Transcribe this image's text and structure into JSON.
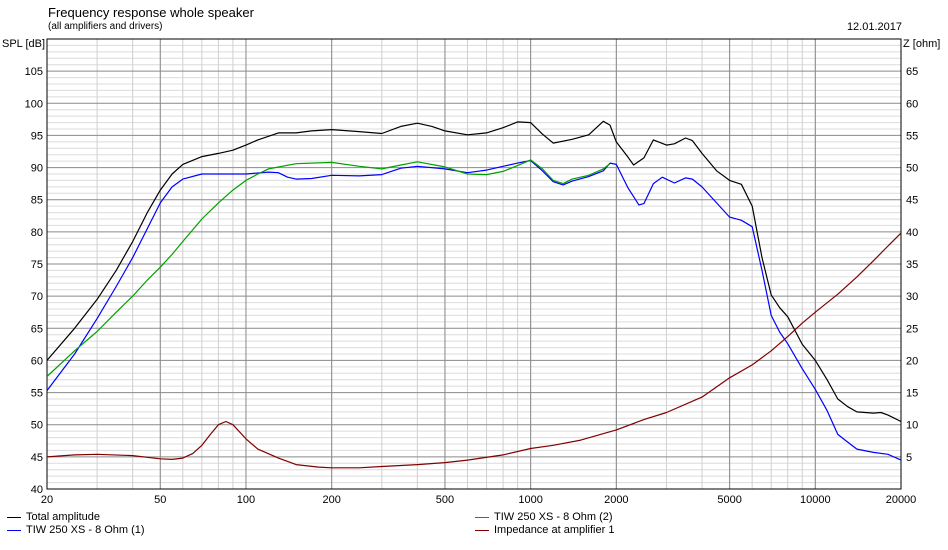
{
  "header": {
    "title": "Frequency response whole speaker",
    "subtitle": "(all amplifiers and drivers)",
    "date": "12.01.2017"
  },
  "chart_data": {
    "type": "line",
    "xscale": "log",
    "xlim": [
      20,
      20000
    ],
    "ylim": [
      40,
      110
    ],
    "y2lim": [
      0,
      70
    ],
    "ylabel": "SPL [dB]",
    "y2label": "Z [ohm]",
    "grid": true,
    "legend": "bottom",
    "x_ticks": [
      {
        "v": 20,
        "l": "20"
      },
      {
        "v": 50,
        "l": "50"
      },
      {
        "v": 100,
        "l": "100"
      },
      {
        "v": 200,
        "l": "200"
      },
      {
        "v": 500,
        "l": "500"
      },
      {
        "v": 1000,
        "l": "1000"
      },
      {
        "v": 2000,
        "l": "2000"
      },
      {
        "v": 5000,
        "l": "5000"
      },
      {
        "v": 10000,
        "l": "10000"
      },
      {
        "v": 20000,
        "l": "20000"
      }
    ],
    "y_ticks": [
      "40",
      "45",
      "50",
      "55",
      "60",
      "65",
      "70",
      "75",
      "80",
      "85",
      "90",
      "95",
      "100",
      "105"
    ],
    "y2_ticks": [
      "5",
      "10",
      "15",
      "20",
      "25",
      "30",
      "35",
      "40",
      "45",
      "50",
      "55",
      "60",
      "65"
    ],
    "series": [
      {
        "name": "Total amplitude",
        "color": "#000000",
        "axis": "left",
        "points": [
          [
            20,
            60
          ],
          [
            25,
            65
          ],
          [
            30,
            69.5
          ],
          [
            35,
            74
          ],
          [
            40,
            78.5
          ],
          [
            45,
            83
          ],
          [
            50,
            86.5
          ],
          [
            55,
            89
          ],
          [
            60,
            90.5
          ],
          [
            70,
            91.7
          ],
          [
            80,
            92.2
          ],
          [
            90,
            92.7
          ],
          [
            100,
            93.5
          ],
          [
            110,
            94.3
          ],
          [
            130,
            95.4
          ],
          [
            150,
            95.4
          ],
          [
            170,
            95.7
          ],
          [
            200,
            95.9
          ],
          [
            250,
            95.6
          ],
          [
            300,
            95.3
          ],
          [
            350,
            96.4
          ],
          [
            400,
            96.9
          ],
          [
            450,
            96.4
          ],
          [
            500,
            95.7
          ],
          [
            600,
            95.1
          ],
          [
            700,
            95.4
          ],
          [
            800,
            96.2
          ],
          [
            900,
            97.1
          ],
          [
            1000,
            97
          ],
          [
            1100,
            95.2
          ],
          [
            1200,
            93.8
          ],
          [
            1400,
            94.4
          ],
          [
            1600,
            95.1
          ],
          [
            1800,
            97.2
          ],
          [
            1900,
            96.6
          ],
          [
            2000,
            94
          ],
          [
            2200,
            91.6
          ],
          [
            2300,
            90.4
          ],
          [
            2500,
            91.5
          ],
          [
            2700,
            94.3
          ],
          [
            3000,
            93.5
          ],
          [
            3200,
            93.7
          ],
          [
            3500,
            94.6
          ],
          [
            3700,
            94.2
          ],
          [
            4000,
            92.2
          ],
          [
            4500,
            89.5
          ],
          [
            5000,
            88
          ],
          [
            5500,
            87.4
          ],
          [
            6000,
            84
          ],
          [
            6500,
            76
          ],
          [
            7000,
            70.2
          ],
          [
            7500,
            68.2
          ],
          [
            8000,
            66.8
          ],
          [
            9000,
            62.5
          ],
          [
            10000,
            60
          ],
          [
            11000,
            57
          ],
          [
            12000,
            54
          ],
          [
            13000,
            52.8
          ],
          [
            14000,
            52
          ],
          [
            16000,
            51.8
          ],
          [
            17000,
            51.9
          ],
          [
            18000,
            51.5
          ],
          [
            20000,
            50.5
          ]
        ]
      },
      {
        "name": "TIW 250 XS - 8 Ohm (1)",
        "color": "#0000ff",
        "axis": "left",
        "points": [
          [
            20,
            55.3
          ],
          [
            25,
            61
          ],
          [
            30,
            66.5
          ],
          [
            35,
            71.5
          ],
          [
            40,
            76
          ],
          [
            45,
            80.5
          ],
          [
            50,
            84.5
          ],
          [
            55,
            87
          ],
          [
            60,
            88.2
          ],
          [
            70,
            89
          ],
          [
            80,
            89
          ],
          [
            100,
            89
          ],
          [
            120,
            89.3
          ],
          [
            130,
            89.2
          ],
          [
            140,
            88.5
          ],
          [
            150,
            88.2
          ],
          [
            170,
            88.3
          ],
          [
            200,
            88.8
          ],
          [
            250,
            88.7
          ],
          [
            300,
            88.9
          ],
          [
            350,
            89.9
          ],
          [
            400,
            90.2
          ],
          [
            500,
            89.8
          ],
          [
            600,
            89.2
          ],
          [
            700,
            89.6
          ],
          [
            800,
            90.2
          ],
          [
            900,
            90.7
          ],
          [
            1000,
            91.1
          ],
          [
            1100,
            89.5
          ],
          [
            1200,
            87.8
          ],
          [
            1300,
            87.3
          ],
          [
            1400,
            87.9
          ],
          [
            1600,
            88.6
          ],
          [
            1800,
            89.5
          ],
          [
            1900,
            90.7
          ],
          [
            2000,
            90.5
          ],
          [
            2200,
            86.8
          ],
          [
            2400,
            84.2
          ],
          [
            2500,
            84.4
          ],
          [
            2700,
            87.5
          ],
          [
            2900,
            88.5
          ],
          [
            3200,
            87.6
          ],
          [
            3500,
            88.4
          ],
          [
            3700,
            88.2
          ],
          [
            4000,
            87
          ],
          [
            4500,
            84.5
          ],
          [
            5000,
            82.3
          ],
          [
            5500,
            81.8
          ],
          [
            6000,
            80.8
          ],
          [
            6500,
            74
          ],
          [
            7000,
            67
          ],
          [
            7500,
            64.4
          ],
          [
            8000,
            62.6
          ],
          [
            9000,
            58.7
          ],
          [
            10000,
            55.5
          ],
          [
            11000,
            52.2
          ],
          [
            12000,
            48.5
          ],
          [
            13000,
            47.3
          ],
          [
            14000,
            46.2
          ],
          [
            16000,
            45.7
          ],
          [
            18000,
            45.4
          ],
          [
            20000,
            44.5
          ]
        ]
      },
      {
        "name": "TIW 250 XS - 8 Ohm (2)",
        "color": "#00a000",
        "axis": "left",
        "points": [
          [
            20,
            57.5
          ],
          [
            25,
            61.5
          ],
          [
            30,
            64.5
          ],
          [
            35,
            67.5
          ],
          [
            40,
            70
          ],
          [
            45,
            72.5
          ],
          [
            50,
            74.5
          ],
          [
            55,
            76.5
          ],
          [
            60,
            78.5
          ],
          [
            70,
            82
          ],
          [
            80,
            84.5
          ],
          [
            90,
            86.5
          ],
          [
            100,
            88
          ],
          [
            110,
            89
          ],
          [
            120,
            89.8
          ],
          [
            150,
            90.6
          ],
          [
            200,
            90.8
          ],
          [
            250,
            90.2
          ],
          [
            300,
            89.8
          ],
          [
            350,
            90.4
          ],
          [
            400,
            90.9
          ],
          [
            500,
            90.1
          ],
          [
            600,
            89
          ],
          [
            700,
            88.9
          ],
          [
            800,
            89.4
          ],
          [
            900,
            90.3
          ],
          [
            1000,
            91.2
          ],
          [
            1100,
            89.8
          ],
          [
            1200,
            88
          ],
          [
            1300,
            87.5
          ],
          [
            1400,
            88.2
          ],
          [
            1600,
            88.8
          ],
          [
            1800,
            89.8
          ],
          [
            1900,
            90.6
          ]
        ]
      },
      {
        "name": "Impedance at amplifier 1",
        "color": "#800000",
        "axis": "right",
        "points": [
          [
            20,
            5
          ],
          [
            25,
            5.3
          ],
          [
            30,
            5.4
          ],
          [
            40,
            5.2
          ],
          [
            50,
            4.7
          ],
          [
            55,
            4.6
          ],
          [
            60,
            4.8
          ],
          [
            65,
            5.5
          ],
          [
            70,
            6.8
          ],
          [
            75,
            8.5
          ],
          [
            80,
            10
          ],
          [
            85,
            10.5
          ],
          [
            90,
            10
          ],
          [
            100,
            7.8
          ],
          [
            110,
            6.2
          ],
          [
            130,
            4.8
          ],
          [
            150,
            3.8
          ],
          [
            180,
            3.4
          ],
          [
            200,
            3.3
          ],
          [
            250,
            3.3
          ],
          [
            300,
            3.5
          ],
          [
            400,
            3.8
          ],
          [
            500,
            4.1
          ],
          [
            600,
            4.5
          ],
          [
            800,
            5.3
          ],
          [
            1000,
            6.3
          ],
          [
            1200,
            6.8
          ],
          [
            1500,
            7.6
          ],
          [
            2000,
            9.2
          ],
          [
            2500,
            10.8
          ],
          [
            3000,
            11.9
          ],
          [
            4000,
            14.3
          ],
          [
            5000,
            17.3
          ],
          [
            6000,
            19.3
          ],
          [
            7000,
            21.5
          ],
          [
            8000,
            23.7
          ],
          [
            9000,
            25.8
          ],
          [
            10000,
            27.5
          ],
          [
            12000,
            30.3
          ],
          [
            14000,
            33
          ],
          [
            16000,
            35.5
          ],
          [
            18000,
            37.8
          ],
          [
            20000,
            39.8
          ]
        ]
      }
    ],
    "legend_entries": [
      {
        "label": "Total amplitude",
        "color": "#000000"
      },
      {
        "label": "TIW 250 XS - 8 Ohm (1)",
        "color": "#0000ff"
      },
      {
        "label": "TIW 250 XS - 8 Ohm (2)",
        "color": "#00a000"
      },
      {
        "label": "Impedance at amplifier 1",
        "color": "#800000"
      }
    ]
  }
}
